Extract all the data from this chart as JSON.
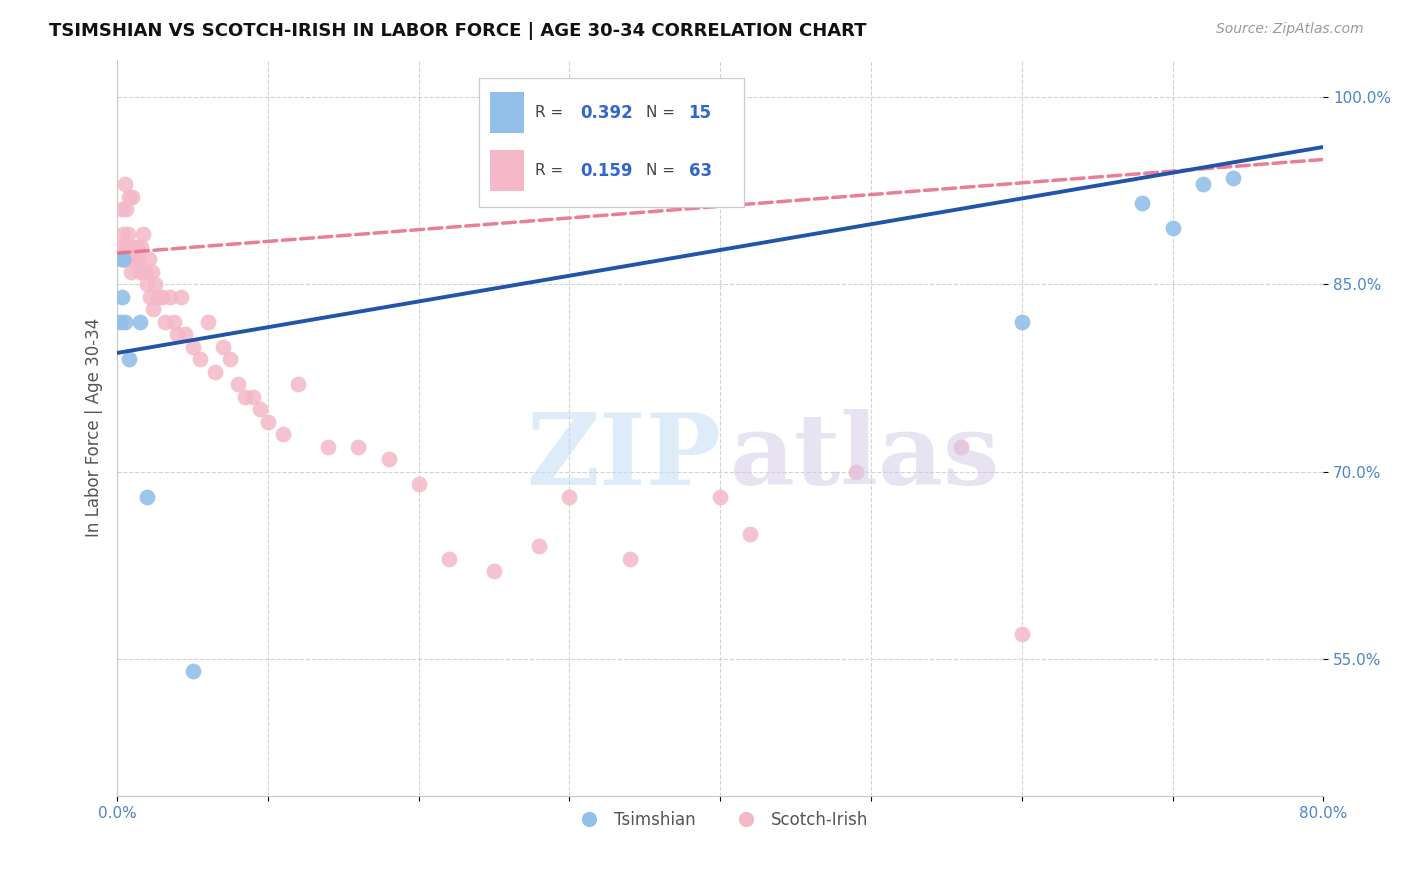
{
  "title": "TSIMSHIAN VS SCOTCH-IRISH IN LABOR FORCE | AGE 30-34 CORRELATION CHART",
  "source": "Source: ZipAtlas.com",
  "ylabel": "In Labor Force | Age 30-34",
  "x_min": 0.0,
  "x_max": 0.8,
  "y_min": 0.44,
  "y_max": 1.03,
  "y_ticks": [
    0.55,
    0.7,
    0.85,
    1.0
  ],
  "y_tick_labels": [
    "55.0%",
    "70.0%",
    "85.0%",
    "100.0%"
  ],
  "blue_color": "#92c0e8",
  "pink_color": "#f4b8c8",
  "blue_line_color": "#2255aa",
  "pink_line_color": "#e8708a",
  "tsimshian_x": [
    0.002,
    0.003,
    0.003,
    0.004,
    0.004,
    0.005,
    0.008,
    0.015,
    0.02,
    0.05,
    0.6,
    0.68,
    0.7,
    0.72,
    0.74
  ],
  "tsimshian_y": [
    0.82,
    0.84,
    0.87,
    0.87,
    0.87,
    0.82,
    0.79,
    0.82,
    0.68,
    0.54,
    0.82,
    0.915,
    0.895,
    0.93,
    0.935
  ],
  "scotch_irish_x": [
    0.002,
    0.003,
    0.004,
    0.005,
    0.005,
    0.006,
    0.006,
    0.007,
    0.008,
    0.009,
    0.009,
    0.01,
    0.01,
    0.011,
    0.012,
    0.013,
    0.014,
    0.015,
    0.016,
    0.017,
    0.018,
    0.019,
    0.02,
    0.021,
    0.022,
    0.023,
    0.024,
    0.025,
    0.027,
    0.03,
    0.032,
    0.035,
    0.038,
    0.04,
    0.042,
    0.045,
    0.05,
    0.055,
    0.06,
    0.065,
    0.07,
    0.075,
    0.08,
    0.085,
    0.09,
    0.095,
    0.1,
    0.11,
    0.12,
    0.14,
    0.16,
    0.18,
    0.2,
    0.22,
    0.25,
    0.28,
    0.3,
    0.34,
    0.4,
    0.42,
    0.49,
    0.56,
    0.6
  ],
  "scotch_irish_y": [
    0.88,
    0.91,
    0.89,
    0.87,
    0.93,
    0.91,
    0.88,
    0.89,
    0.92,
    0.87,
    0.86,
    0.87,
    0.92,
    0.88,
    0.87,
    0.88,
    0.87,
    0.86,
    0.88,
    0.89,
    0.86,
    0.86,
    0.85,
    0.87,
    0.84,
    0.86,
    0.83,
    0.85,
    0.84,
    0.84,
    0.82,
    0.84,
    0.82,
    0.81,
    0.84,
    0.81,
    0.8,
    0.79,
    0.82,
    0.78,
    0.8,
    0.79,
    0.77,
    0.76,
    0.76,
    0.75,
    0.74,
    0.73,
    0.77,
    0.72,
    0.72,
    0.71,
    0.69,
    0.63,
    0.62,
    0.64,
    0.68,
    0.63,
    0.68,
    0.65,
    0.7,
    0.72,
    0.57
  ],
  "tsimshian_trend_x0": 0.0,
  "tsimshian_trend_y0": 0.795,
  "tsimshian_trend_x1": 0.8,
  "tsimshian_trend_y1": 0.96,
  "scotch_trend_x0": 0.0,
  "scotch_trend_y0": 0.875,
  "scotch_trend_x1": 0.8,
  "scotch_trend_y1": 0.95
}
